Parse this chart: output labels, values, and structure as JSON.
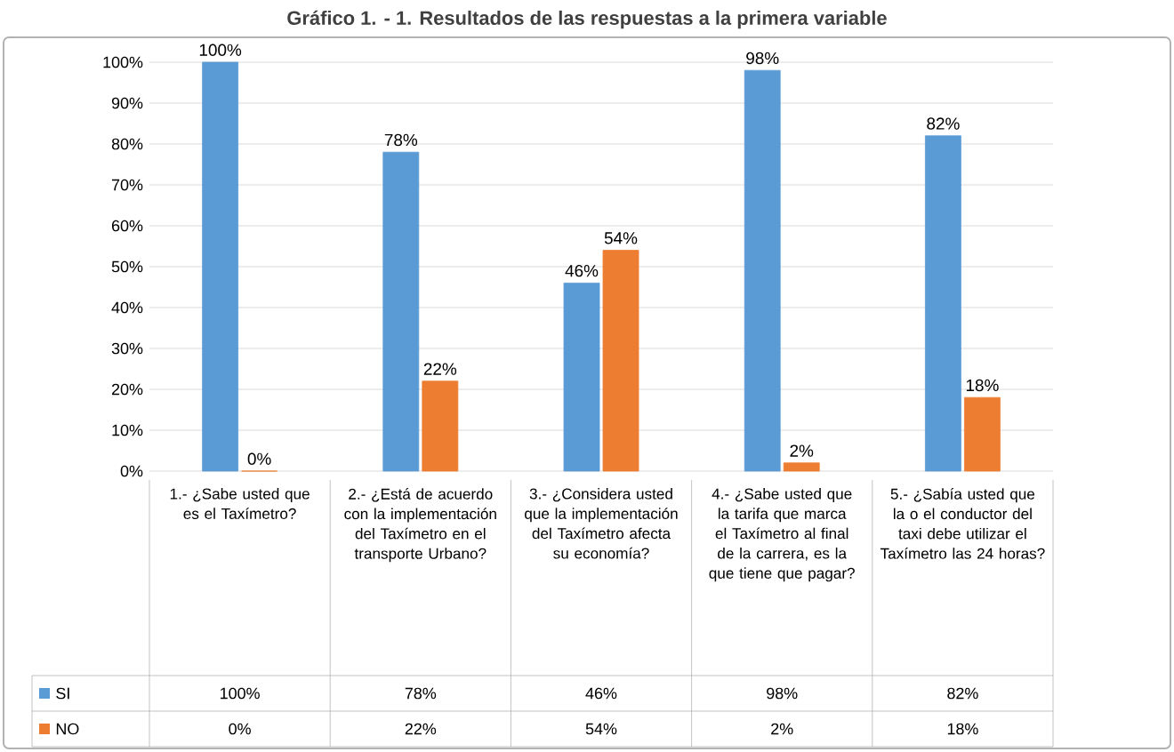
{
  "chart_data": {
    "type": "bar",
    "title": "Gráfico 1. - 1. Resultados de las respuestas a la primera variable",
    "categories": [
      "1.- ¿Sabe usted que es el Taxímetro?",
      "2.- ¿Está de acuerdo con la implementación del Taxímetro en el transporte Urbano?",
      "3.- ¿Considera usted que la implementación del Taxímetro afecta su economía?",
      "4.- ¿Sabe usted que la tarifa que marca el Taxímetro al final de la carrera, es la que tiene que pagar?",
      "5.- ¿Sabía usted que la o el conductor del taxi debe utilizar el Taxímetro las 24 horas?"
    ],
    "series": [
      {
        "name": "SI",
        "color": "#5b9bd5",
        "values": [
          100,
          78,
          46,
          98,
          82
        ],
        "value_labels": [
          "100%",
          "78%",
          "46%",
          "98%",
          "82%"
        ]
      },
      {
        "name": "NO",
        "color": "#ed7d31",
        "values": [
          0,
          22,
          54,
          2,
          18
        ],
        "value_labels": [
          "0%",
          "22%",
          "54%",
          "2%",
          "18%"
        ]
      }
    ],
    "ylim": [
      0,
      100
    ],
    "yticks": [
      {
        "value": 0,
        "label": "0%"
      },
      {
        "value": 10,
        "label": "10%"
      },
      {
        "value": 20,
        "label": "20%"
      },
      {
        "value": 30,
        "label": "30%"
      },
      {
        "value": 40,
        "label": "40%"
      },
      {
        "value": 50,
        "label": "50%"
      },
      {
        "value": 60,
        "label": "60%"
      },
      {
        "value": 70,
        "label": "70%"
      },
      {
        "value": 80,
        "label": "80%"
      },
      {
        "value": 90,
        "label": "90%"
      },
      {
        "value": 100,
        "label": "100%"
      }
    ],
    "grid": "y",
    "legend": "bottom"
  }
}
